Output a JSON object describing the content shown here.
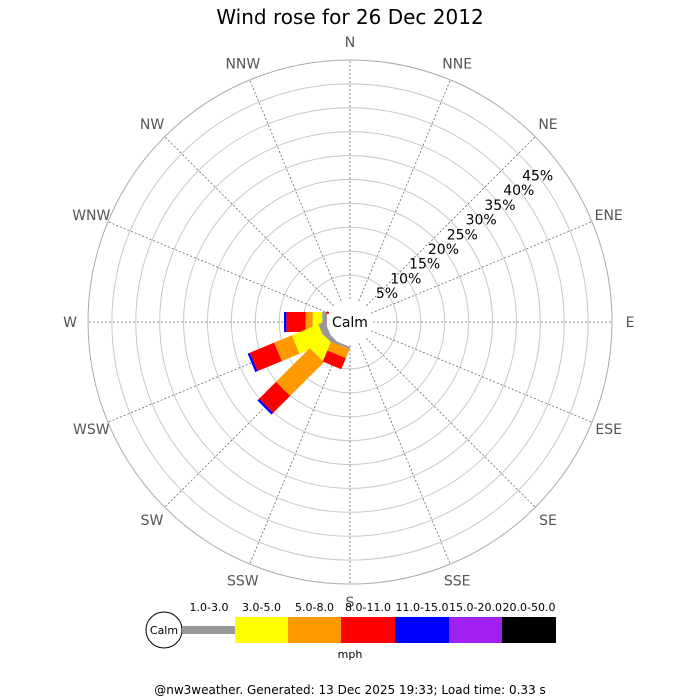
{
  "chart_data": {
    "type": "wind-rose",
    "title": "Wind rose for 26 Dec 2012",
    "directions": [
      "N",
      "NNE",
      "NE",
      "ENE",
      "E",
      "ESE",
      "SE",
      "SSE",
      "S",
      "SSW",
      "SW",
      "WSW",
      "W",
      "WNW",
      "NW",
      "NNW"
    ],
    "rings_percent": [
      5,
      10,
      15,
      20,
      25,
      30,
      35,
      40,
      45
    ],
    "ring_labels": [
      "5%",
      "10%",
      "15%",
      "20%",
      "25%",
      "30%",
      "35%",
      "40%",
      "45%"
    ],
    "rmax_percent": 50,
    "calm_label": "Calm",
    "speed_bins": [
      "1.0-3.0",
      "3.0-5.0",
      "5.0-8.0",
      "8.0-11.0",
      "11.0-15.0",
      "15.0-20.0",
      "20.0-50.0"
    ],
    "speed_colors": [
      "#999999",
      "#ffff00",
      "#ff9900",
      "#ff0000",
      "#0000ff",
      "#a020f0",
      "#000000"
    ],
    "unit": "mph",
    "stacks": [
      {
        "direction": "W",
        "segments": [
          {
            "bin": "1.0-3.0",
            "percent": 1.0
          },
          {
            "bin": "3.0-5.0",
            "percent": 2.0
          },
          {
            "bin": "5.0-8.0",
            "percent": 1.5
          },
          {
            "bin": "8.0-11.0",
            "percent": 4.0
          },
          {
            "bin": "11.0-15.0",
            "percent": 0.5
          }
        ]
      },
      {
        "direction": "WSW",
        "segments": [
          {
            "bin": "1.0-3.0",
            "percent": 1.5
          },
          {
            "bin": "3.0-5.0",
            "percent": 6.0
          },
          {
            "bin": "5.0-8.0",
            "percent": 4.0
          },
          {
            "bin": "8.0-11.0",
            "percent": 5.5
          },
          {
            "bin": "11.0-15.0",
            "percent": 0.5
          }
        ]
      },
      {
        "direction": "SW",
        "segments": [
          {
            "bin": "1.0-3.0",
            "percent": 1.0
          },
          {
            "bin": "3.0-5.0",
            "percent": 4.0
          },
          {
            "bin": "5.0-8.0",
            "percent": 10.0
          },
          {
            "bin": "8.0-11.0",
            "percent": 5.0
          },
          {
            "bin": "11.0-15.0",
            "percent": 0.5
          }
        ]
      },
      {
        "direction": "SSW",
        "segments": [
          {
            "bin": "1.0-3.0",
            "percent": 0.5
          },
          {
            "bin": "5.0-8.0",
            "percent": 2.0
          },
          {
            "bin": "8.0-11.0",
            "percent": 2.5
          }
        ]
      },
      {
        "direction": "WNW",
        "segments": [
          {
            "bin": "8.0-11.0",
            "percent": 0.5
          }
        ]
      }
    ]
  },
  "footer": "@nw3weather. Generated: 13 Dec 2025 19:33; Load time: 0.33 s"
}
